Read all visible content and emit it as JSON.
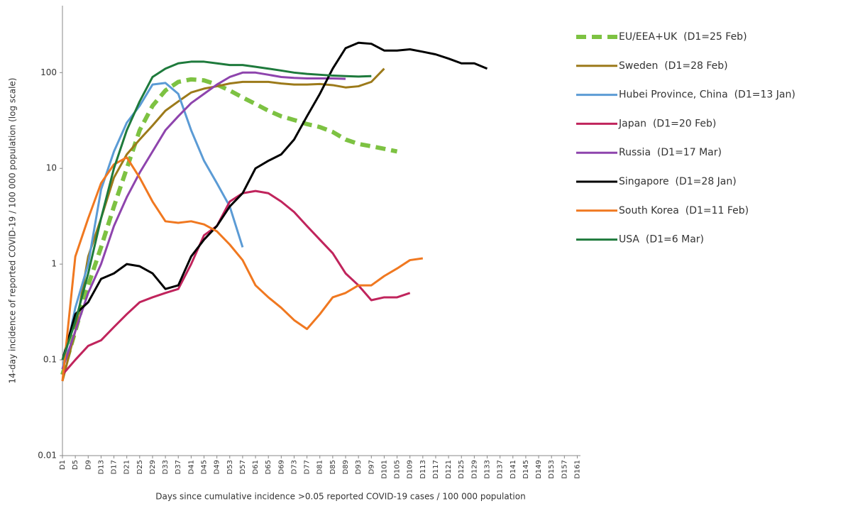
{
  "chart_data": {
    "type": "line",
    "y_label": "14-day incidence of reported COVID-19 / 100 000 population (log scale)",
    "x_label": "Days since cumulative incidence >0.05 reported COVID-19 cases / 100 000 population",
    "log_scale": true,
    "legend": "right",
    "x": [
      1,
      5,
      9,
      13,
      17,
      21,
      25,
      29,
      33,
      37,
      41,
      45,
      49,
      53,
      57,
      61,
      65,
      69,
      73,
      77,
      81,
      85,
      89,
      93,
      97,
      101,
      105,
      109,
      113,
      117,
      121,
      125,
      129,
      133,
      137
    ],
    "xlim": [
      1,
      162
    ],
    "xticks": [
      {
        "value": 1,
        "label": "D1"
      },
      {
        "value": 5,
        "label": "D5"
      },
      {
        "value": 9,
        "label": "D9"
      },
      {
        "value": 13,
        "label": "D13"
      },
      {
        "value": 17,
        "label": "D17"
      },
      {
        "value": 21,
        "label": "D21"
      },
      {
        "value": 25,
        "label": "D25"
      },
      {
        "value": 29,
        "label": "D29"
      },
      {
        "value": 33,
        "label": "D33"
      },
      {
        "value": 37,
        "label": "D37"
      },
      {
        "value": 41,
        "label": "D41"
      },
      {
        "value": 45,
        "label": "D45"
      },
      {
        "value": 49,
        "label": "D49"
      },
      {
        "value": 53,
        "label": "D53"
      },
      {
        "value": 57,
        "label": "D57"
      },
      {
        "value": 61,
        "label": "D61"
      },
      {
        "value": 65,
        "label": "D65"
      },
      {
        "value": 69,
        "label": "D69"
      },
      {
        "value": 73,
        "label": "D73"
      },
      {
        "value": 77,
        "label": "D77"
      },
      {
        "value": 81,
        "label": "D81"
      },
      {
        "value": 85,
        "label": "D85"
      },
      {
        "value": 89,
        "label": "D89"
      },
      {
        "value": 93,
        "label": "D93"
      },
      {
        "value": 97,
        "label": "D97"
      },
      {
        "value": 101,
        "label": "D101"
      },
      {
        "value": 105,
        "label": "D105"
      },
      {
        "value": 109,
        "label": "D109"
      },
      {
        "value": 113,
        "label": "D113"
      },
      {
        "value": 117,
        "label": "D117"
      },
      {
        "value": 121,
        "label": "D121"
      },
      {
        "value": 125,
        "label": "D125"
      },
      {
        "value": 129,
        "label": "D129"
      },
      {
        "value": 133,
        "label": "D133"
      },
      {
        "value": 137,
        "label": "D137"
      },
      {
        "value": 141,
        "label": "D141"
      },
      {
        "value": 145,
        "label": "D145"
      },
      {
        "value": 149,
        "label": "D149"
      },
      {
        "value": 153,
        "label": "D153"
      },
      {
        "value": 157,
        "label": "D157"
      },
      {
        "value": 161,
        "label": "D161"
      }
    ],
    "ylim": [
      0.01,
      500
    ],
    "yticks": [
      0.01,
      0.1,
      1,
      10,
      100
    ],
    "series": [
      {
        "name": "EU/EEA+UK  (D1=25 Feb)",
        "color": "#7dc242",
        "dashed": true,
        "values": [
          0.07,
          0.2,
          0.6,
          1.5,
          4,
          10,
          25,
          45,
          65,
          80,
          85,
          83,
          75,
          65,
          55,
          47,
          40,
          35,
          32,
          29,
          27,
          24,
          20,
          18,
          17,
          16,
          15,
          null,
          null,
          null,
          null,
          null,
          null,
          null,
          null
        ]
      },
      {
        "name": "Sweden  (D1=28 Feb)",
        "color": "#9c7a1a",
        "values": [
          0.06,
          0.2,
          1.2,
          3,
          8,
          14,
          20,
          28,
          40,
          50,
          62,
          68,
          72,
          77,
          80,
          80,
          80,
          77,
          75,
          75,
          76,
          74,
          70,
          72,
          80,
          110,
          null,
          null,
          null,
          null,
          null,
          null,
          null,
          null,
          null
        ]
      },
      {
        "name": "Hubei Province, China  (D1=13 Jan)",
        "color": "#5b9bd5",
        "values": [
          0.08,
          0.35,
          1,
          6,
          15,
          30,
          45,
          75,
          78,
          60,
          25,
          12,
          7,
          4,
          1.5,
          null,
          null,
          null,
          null,
          null,
          null,
          null,
          null,
          null,
          null,
          null,
          null,
          null,
          null,
          null,
          null,
          null,
          null,
          null,
          null
        ]
      },
      {
        "name": "Japan  (D1=20 Feb)",
        "color": "#c0245c",
        "values": [
          0.07,
          0.1,
          0.14,
          0.16,
          0.22,
          0.3,
          0.4,
          0.45,
          0.5,
          0.55,
          1,
          2,
          2.5,
          4.5,
          5.5,
          5.8,
          5.5,
          4.5,
          3.5,
          2.5,
          1.8,
          1.3,
          0.8,
          0.6,
          0.42,
          0.45,
          0.45,
          0.5,
          null,
          null,
          null,
          null,
          null,
          null,
          null
        ]
      },
      {
        "name": "Russia  (D1=17 Mar)",
        "color": "#8e44ad",
        "values": [
          0.08,
          0.2,
          0.5,
          1,
          2.5,
          5,
          9,
          15,
          25,
          35,
          48,
          60,
          75,
          90,
          100,
          100,
          95,
          90,
          88,
          87,
          87,
          87,
          86,
          null,
          null,
          null,
          null,
          null,
          null,
          null,
          null,
          null,
          null,
          null,
          null
        ]
      },
      {
        "name": "Singapore  (D1=28 Jan)",
        "color": "#000000",
        "values": [
          0.1,
          0.3,
          0.4,
          0.7,
          0.8,
          1,
          0.95,
          0.8,
          0.55,
          0.6,
          1.2,
          1.8,
          2.5,
          4,
          5.5,
          10,
          12,
          14,
          20,
          35,
          60,
          110,
          180,
          205,
          200,
          170,
          170,
          175,
          165,
          155,
          140,
          125,
          125,
          110,
          null
        ]
      },
      {
        "name": "South Korea  (D1=11 Feb)",
        "color": "#f07820",
        "values": [
          0.06,
          1.2,
          3,
          7,
          11,
          13,
          8,
          4.5,
          2.8,
          2.7,
          2.8,
          2.6,
          2.2,
          1.6,
          1.1,
          0.6,
          0.45,
          0.35,
          0.26,
          0.21,
          0.3,
          0.45,
          0.5,
          0.6,
          0.6,
          0.75,
          0.9,
          1.1,
          1.15,
          null,
          null,
          null,
          null,
          null,
          null
        ]
      },
      {
        "name": "USA  (D1=6 Mar)",
        "color": "#1e7a3c",
        "values": [
          0.1,
          0.25,
          0.8,
          3,
          10,
          25,
          50,
          90,
          110,
          125,
          130,
          130,
          125,
          120,
          120,
          115,
          110,
          105,
          100,
          97,
          95,
          93,
          92,
          91,
          92,
          null,
          null,
          null,
          null,
          null,
          null,
          null,
          null,
          null,
          null
        ]
      }
    ]
  }
}
